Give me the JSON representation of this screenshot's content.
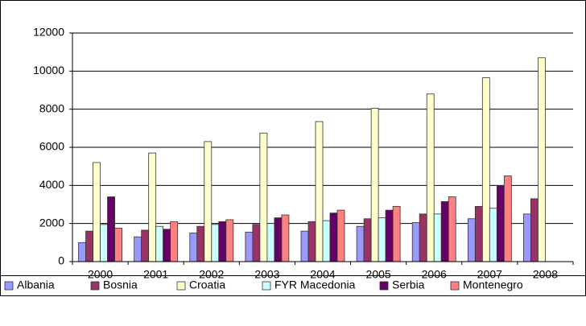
{
  "chart_data": {
    "type": "bar",
    "categories": [
      "2000",
      "2001",
      "2002",
      "2003",
      "2004",
      "2005",
      "2006",
      "2007",
      "2008"
    ],
    "series": [
      {
        "name": "Albania",
        "color": "#9999ff",
        "values": [
          1000,
          1300,
          1500,
          1550,
          1600,
          1850,
          2050,
          2250,
          2500
        ]
      },
      {
        "name": "Bosnia",
        "color": "#993366",
        "values": [
          1600,
          1650,
          1850,
          1950,
          2100,
          2250,
          2500,
          2900,
          3300
        ]
      },
      {
        "name": "Croatia",
        "color": "#ffffcc",
        "values": [
          5200,
          5700,
          6300,
          6750,
          7350,
          8050,
          8800,
          9650,
          10700
        ]
      },
      {
        "name": "FYR Macedonia",
        "color": "#ccffff",
        "values": [
          1950,
          1850,
          1950,
          2000,
          2150,
          2300,
          2500,
          2800,
          null
        ]
      },
      {
        "name": "Serbia",
        "color": "#660066",
        "values": [
          3400,
          1700,
          2100,
          2300,
          2550,
          2700,
          3150,
          4000,
          null
        ]
      },
      {
        "name": "Montenegro",
        "color": "#ff8080",
        "values": [
          1750,
          2100,
          2200,
          2450,
          2700,
          2900,
          3400,
          4500,
          null
        ]
      }
    ],
    "ylim": [
      0,
      12000
    ],
    "yticks": [
      0,
      2000,
      4000,
      6000,
      8000,
      10000,
      12000
    ],
    "grid": true,
    "legend": "bottom"
  }
}
